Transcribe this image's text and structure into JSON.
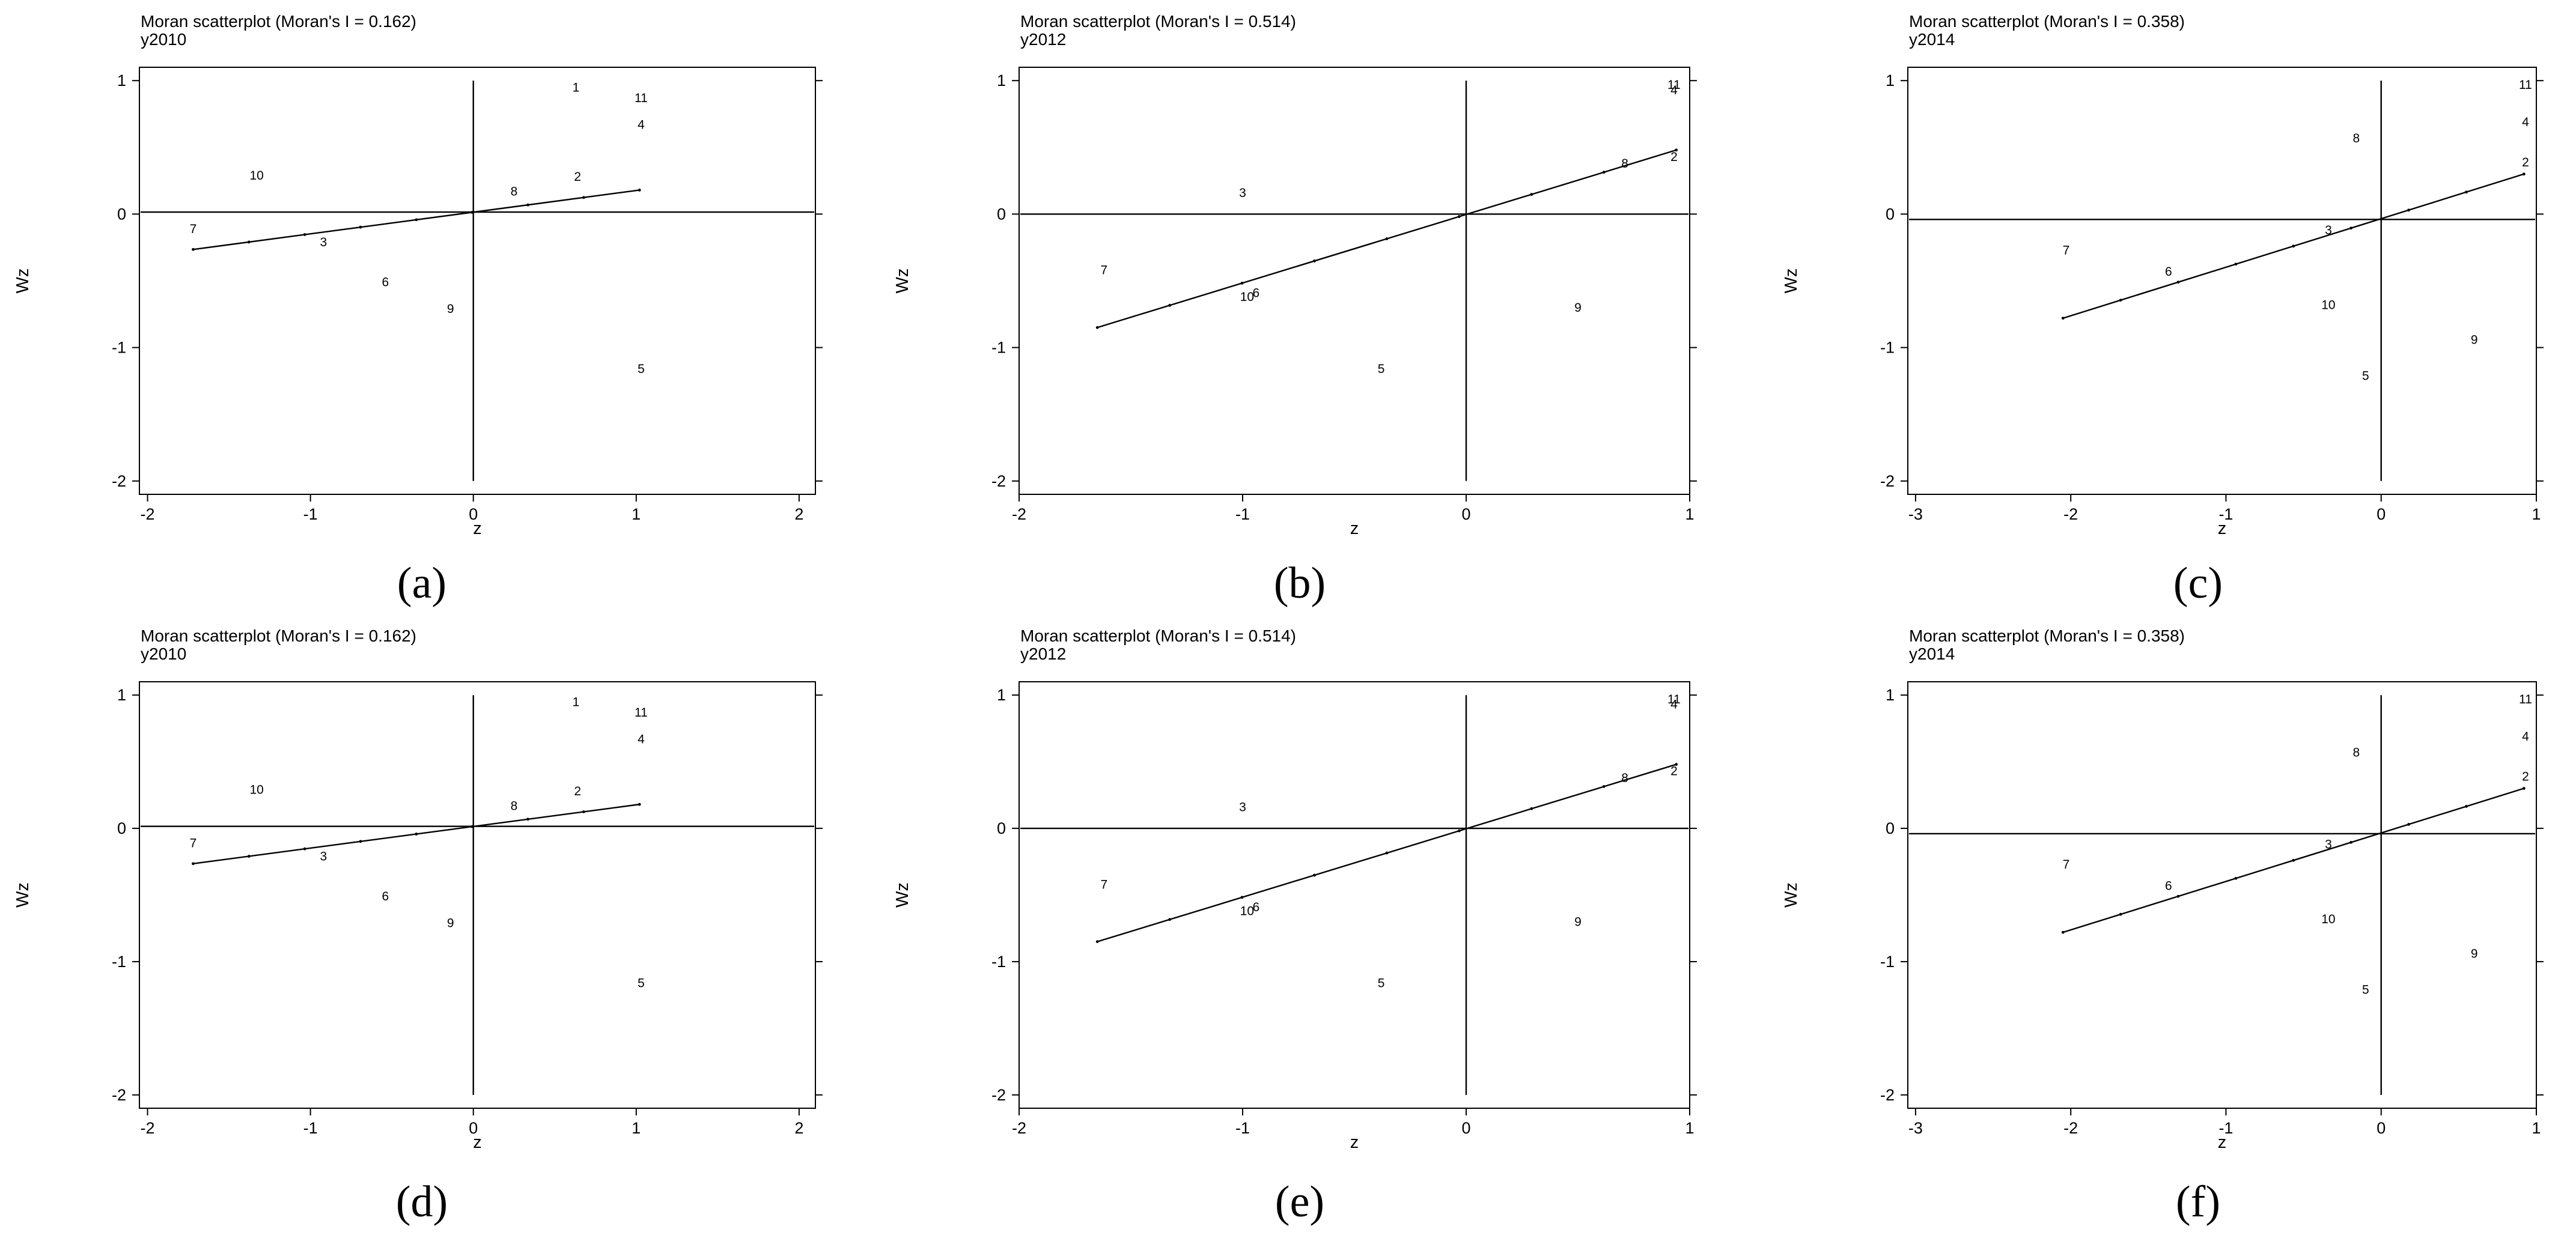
{
  "chart_data": [
    {
      "panel": "(a)",
      "type": "scatter",
      "title": "Moran scatterplot (Moran's I = 0.162)",
      "subtitle": "y2010",
      "xlabel": "z",
      "ylabel": "Wz",
      "xlim": [
        -2.05,
        2.1
      ],
      "ylim": [
        -2.1,
        1.1
      ],
      "xticks": [
        "-2",
        "-1",
        "0",
        "1",
        "2"
      ],
      "yticks": [
        "-2",
        "-1",
        "0",
        "1"
      ],
      "mean_z": 0.0,
      "mean_wz": 0.015,
      "fit": {
        "x1": -1.72,
        "y1": -0.265,
        "x2": 1.02,
        "y2": 0.18
      },
      "points": [
        {
          "label": "1",
          "x": 0.63,
          "y": 0.95
        },
        {
          "label": "11",
          "x": 1.03,
          "y": 0.87
        },
        {
          "label": "4",
          "x": 1.03,
          "y": 0.67
        },
        {
          "label": "10",
          "x": -1.33,
          "y": 0.29
        },
        {
          "label": "2",
          "x": 0.64,
          "y": 0.28
        },
        {
          "label": "8",
          "x": 0.25,
          "y": 0.17
        },
        {
          "label": "7",
          "x": -1.72,
          "y": -0.11
        },
        {
          "label": "3",
          "x": -0.92,
          "y": -0.21
        },
        {
          "label": "6",
          "x": -0.54,
          "y": -0.51
        },
        {
          "label": "9",
          "x": -0.14,
          "y": -0.71
        },
        {
          "label": "5",
          "x": 1.03,
          "y": -1.16
        }
      ]
    },
    {
      "panel": "(b)",
      "type": "scatter",
      "title": "Moran scatterplot (Moran's I = 0.514)",
      "subtitle": "y2012",
      "xlabel": "z",
      "ylabel": "Wz",
      "xlim": [
        -2.0,
        1.0
      ],
      "ylim": [
        -2.1,
        1.1
      ],
      "xticks": [
        "-2",
        "-1",
        "0",
        "1"
      ],
      "yticks": [
        "-2",
        "-1",
        "0",
        "1"
      ],
      "mean_z": 0.0,
      "mean_wz": 0.0,
      "fit": {
        "x1": -1.65,
        "y1": -0.85,
        "x2": 0.94,
        "y2": 0.48
      },
      "points": [
        {
          "label": "11",
          "x": 0.93,
          "y": 0.97
        },
        {
          "label": "4",
          "x": 0.93,
          "y": 0.93
        },
        {
          "label": "8",
          "x": 0.71,
          "y": 0.38
        },
        {
          "label": "2",
          "x": 0.93,
          "y": 0.43
        },
        {
          "label": "3",
          "x": -1.0,
          "y": 0.16
        },
        {
          "label": "7",
          "x": -1.62,
          "y": -0.42
        },
        {
          "label": "10",
          "x": -0.98,
          "y": -0.62
        },
        {
          "label": "6",
          "x": -0.94,
          "y": -0.59
        },
        {
          "label": "9",
          "x": 0.5,
          "y": -0.7
        },
        {
          "label": "5",
          "x": -0.38,
          "y": -1.16
        }
      ]
    },
    {
      "panel": "(c)",
      "type": "scatter",
      "title": "Moran scatterplot (Moran's I = 0.358)",
      "subtitle": "y2014",
      "xlabel": "z",
      "ylabel": "Wz",
      "xlim": [
        -3.05,
        1.0
      ],
      "ylim": [
        -2.1,
        1.1
      ],
      "xticks": [
        "-3",
        "-2",
        "-1",
        "0",
        "1"
      ],
      "yticks": [
        "-2",
        "-1",
        "0",
        "1"
      ],
      "mean_z": 0.0,
      "mean_wz": -0.04,
      "fit": {
        "x1": -2.05,
        "y1": -0.78,
        "x2": 0.92,
        "y2": 0.3
      },
      "points": [
        {
          "label": "11",
          "x": 0.93,
          "y": 0.97
        },
        {
          "label": "4",
          "x": 0.93,
          "y": 0.69
        },
        {
          "label": "8",
          "x": -0.16,
          "y": 0.57
        },
        {
          "label": "2",
          "x": 0.93,
          "y": 0.39
        },
        {
          "label": "3",
          "x": -0.34,
          "y": -0.12
        },
        {
          "label": "7",
          "x": -2.03,
          "y": -0.27
        },
        {
          "label": "6",
          "x": -1.37,
          "y": -0.43
        },
        {
          "label": "10",
          "x": -0.34,
          "y": -0.68
        },
        {
          "label": "9",
          "x": 0.6,
          "y": -0.94
        },
        {
          "label": "5",
          "x": -0.1,
          "y": -1.21
        }
      ]
    },
    {
      "panel": "(d)",
      "type": "scatter",
      "title": "Moran scatterplot (Moran's I = 0.162)",
      "subtitle": "y2010",
      "xlabel": "z",
      "ylabel": "Wz",
      "xlim": [
        -2.05,
        2.1
      ],
      "ylim": [
        -2.1,
        1.1
      ],
      "xticks": [
        "-2",
        "-1",
        "0",
        "1",
        "2"
      ],
      "yticks": [
        "-2",
        "-1",
        "0",
        "1"
      ],
      "mean_z": 0.0,
      "mean_wz": 0.015,
      "fit": {
        "x1": -1.72,
        "y1": -0.265,
        "x2": 1.02,
        "y2": 0.18
      },
      "points": [
        {
          "label": "1",
          "x": 0.63,
          "y": 0.95
        },
        {
          "label": "11",
          "x": 1.03,
          "y": 0.87
        },
        {
          "label": "4",
          "x": 1.03,
          "y": 0.67
        },
        {
          "label": "10",
          "x": -1.33,
          "y": 0.29
        },
        {
          "label": "2",
          "x": 0.64,
          "y": 0.28
        },
        {
          "label": "8",
          "x": 0.25,
          "y": 0.17
        },
        {
          "label": "7",
          "x": -1.72,
          "y": -0.11
        },
        {
          "label": "3",
          "x": -0.92,
          "y": -0.21
        },
        {
          "label": "6",
          "x": -0.54,
          "y": -0.51
        },
        {
          "label": "9",
          "x": -0.14,
          "y": -0.71
        },
        {
          "label": "5",
          "x": 1.03,
          "y": -1.16
        }
      ]
    },
    {
      "panel": "(e)",
      "type": "scatter",
      "title": "Moran scatterplot (Moran's I = 0.514)",
      "subtitle": "y2012",
      "xlabel": "z",
      "ylabel": "Wz",
      "xlim": [
        -2.0,
        1.0
      ],
      "ylim": [
        -2.1,
        1.1
      ],
      "xticks": [
        "-2",
        "-1",
        "0",
        "1"
      ],
      "yticks": [
        "-2",
        "-1",
        "0",
        "1"
      ],
      "mean_z": 0.0,
      "mean_wz": 0.0,
      "fit": {
        "x1": -1.65,
        "y1": -0.85,
        "x2": 0.94,
        "y2": 0.48
      },
      "points": [
        {
          "label": "11",
          "x": 0.93,
          "y": 0.97
        },
        {
          "label": "4",
          "x": 0.93,
          "y": 0.93
        },
        {
          "label": "8",
          "x": 0.71,
          "y": 0.38
        },
        {
          "label": "2",
          "x": 0.93,
          "y": 0.43
        },
        {
          "label": "3",
          "x": -1.0,
          "y": 0.16
        },
        {
          "label": "7",
          "x": -1.62,
          "y": -0.42
        },
        {
          "label": "10",
          "x": -0.98,
          "y": -0.62
        },
        {
          "label": "6",
          "x": -0.94,
          "y": -0.59
        },
        {
          "label": "9",
          "x": 0.5,
          "y": -0.7
        },
        {
          "label": "5",
          "x": -0.38,
          "y": -1.16
        }
      ]
    },
    {
      "panel": "(f)",
      "type": "scatter",
      "title": "Moran scatterplot (Moran's I = 0.358)",
      "subtitle": "y2014",
      "xlabel": "z",
      "ylabel": "Wz",
      "xlim": [
        -3.05,
        1.0
      ],
      "ylim": [
        -2.1,
        1.1
      ],
      "xticks": [
        "-3",
        "-2",
        "-1",
        "0",
        "1"
      ],
      "yticks": [
        "-2",
        "-1",
        "0",
        "1"
      ],
      "mean_z": 0.0,
      "mean_wz": -0.04,
      "fit": {
        "x1": -2.05,
        "y1": -0.78,
        "x2": 0.92,
        "y2": 0.3
      },
      "points": [
        {
          "label": "11",
          "x": 0.93,
          "y": 0.97
        },
        {
          "label": "4",
          "x": 0.93,
          "y": 0.69
        },
        {
          "label": "8",
          "x": -0.16,
          "y": 0.57
        },
        {
          "label": "2",
          "x": 0.93,
          "y": 0.39
        },
        {
          "label": "3",
          "x": -0.34,
          "y": -0.12
        },
        {
          "label": "7",
          "x": -2.03,
          "y": -0.27
        },
        {
          "label": "6",
          "x": -1.37,
          "y": -0.43
        },
        {
          "label": "10",
          "x": -0.34,
          "y": -0.68
        },
        {
          "label": "9",
          "x": 0.6,
          "y": -0.94
        },
        {
          "label": "5",
          "x": -0.1,
          "y": -1.21
        }
      ]
    }
  ]
}
